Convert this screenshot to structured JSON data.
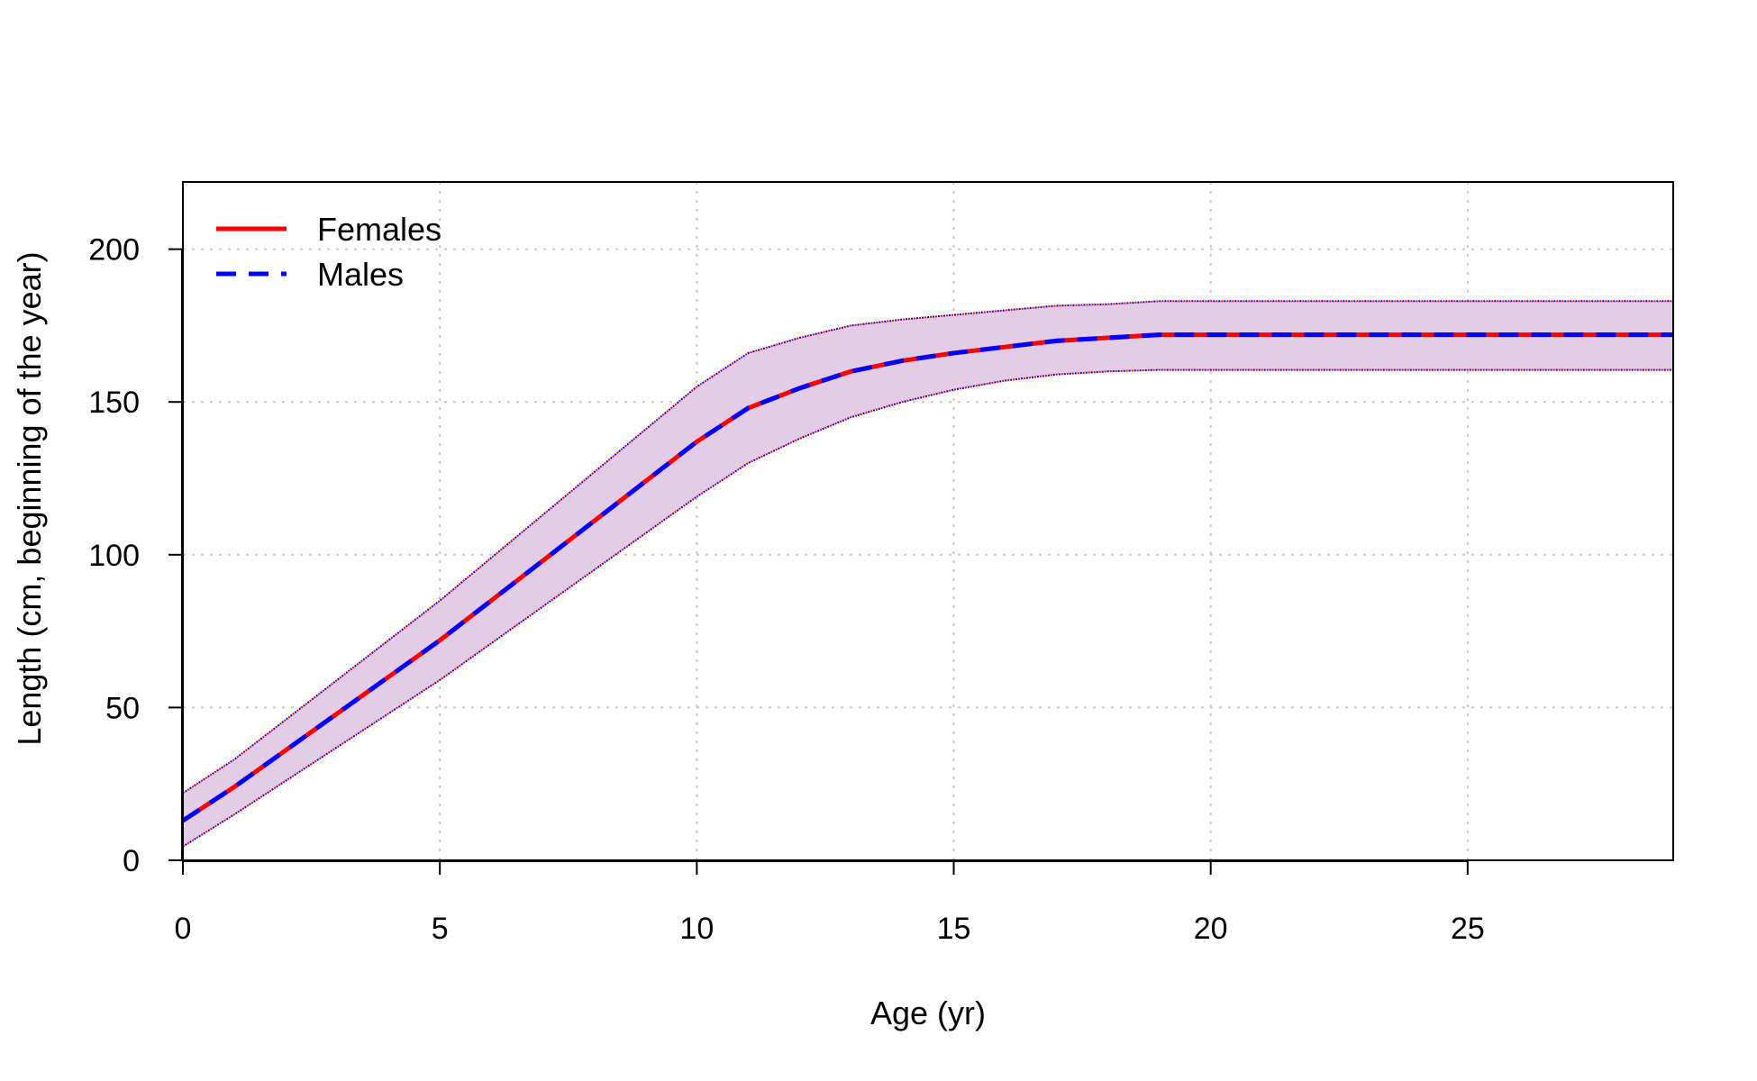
{
  "chart_data": {
    "type": "line",
    "title": "",
    "xlabel": "Age (yr)",
    "ylabel": "Length (cm, beginning of the year)",
    "xlim": [
      0,
      29
    ],
    "ylim": [
      0,
      222
    ],
    "x_ticks": [
      0,
      5,
      10,
      15,
      20,
      25
    ],
    "y_ticks": [
      0,
      50,
      100,
      150,
      200
    ],
    "x_tick_labels": [
      "0",
      "5",
      "10",
      "15",
      "20",
      "25"
    ],
    "y_tick_labels": [
      "0",
      "50",
      "100",
      "150",
      "200"
    ],
    "grid": true,
    "legend_position": "top-left",
    "band_color": "#e2cce6",
    "x": [
      0,
      1,
      2,
      3,
      4,
      5,
      6,
      7,
      8,
      9,
      10,
      11,
      12,
      13,
      14,
      15,
      16,
      17,
      18,
      19,
      20,
      21,
      22,
      23,
      24,
      25,
      26,
      27,
      28,
      29
    ],
    "series": [
      {
        "name": "Females",
        "color": "#ff0000",
        "dash": "solid",
        "values": [
          13,
          24,
          36,
          48,
          60,
          72,
          85,
          98,
          111,
          124,
          137,
          148,
          154.5,
          160,
          163.5,
          166,
          168,
          170,
          171,
          172,
          172,
          172,
          172,
          172,
          172,
          172,
          172,
          172,
          172,
          172
        ],
        "lower": [
          4.5,
          15,
          26,
          37,
          48,
          59,
          71,
          83,
          95,
          107,
          119,
          130,
          138,
          145,
          150,
          154,
          157,
          159,
          160,
          160.5,
          160.5,
          160.5,
          160.5,
          160.5,
          160.5,
          160.5,
          160.5,
          160.5,
          160.5,
          160.5
        ],
        "upper": [
          22,
          33,
          46,
          59,
          72,
          85,
          99,
          113,
          127,
          141,
          155,
          166,
          171,
          175,
          177,
          178.5,
          180,
          181.5,
          182,
          183,
          183,
          183,
          183,
          183,
          183,
          183,
          183,
          183,
          183,
          183
        ]
      },
      {
        "name": "Males",
        "color": "#0000ff",
        "dash": "dashed",
        "values": [
          13,
          24,
          36,
          48,
          60,
          72,
          85,
          98,
          111,
          124,
          137,
          148,
          154.5,
          160,
          163.5,
          166,
          168,
          170,
          171,
          172,
          172,
          172,
          172,
          172,
          172,
          172,
          172,
          172,
          172,
          172
        ],
        "lower": [
          4.5,
          15,
          26,
          37,
          48,
          59,
          71,
          83,
          95,
          107,
          119,
          130,
          138,
          145,
          150,
          154,
          157,
          159,
          160,
          160.5,
          160.5,
          160.5,
          160.5,
          160.5,
          160.5,
          160.5,
          160.5,
          160.5,
          160.5,
          160.5
        ],
        "upper": [
          22,
          33,
          46,
          59,
          72,
          85,
          99,
          113,
          127,
          141,
          155,
          166,
          171,
          175,
          177,
          178.5,
          180,
          181.5,
          182,
          183,
          183,
          183,
          183,
          183,
          183,
          183,
          183,
          183,
          183,
          183
        ]
      }
    ]
  }
}
